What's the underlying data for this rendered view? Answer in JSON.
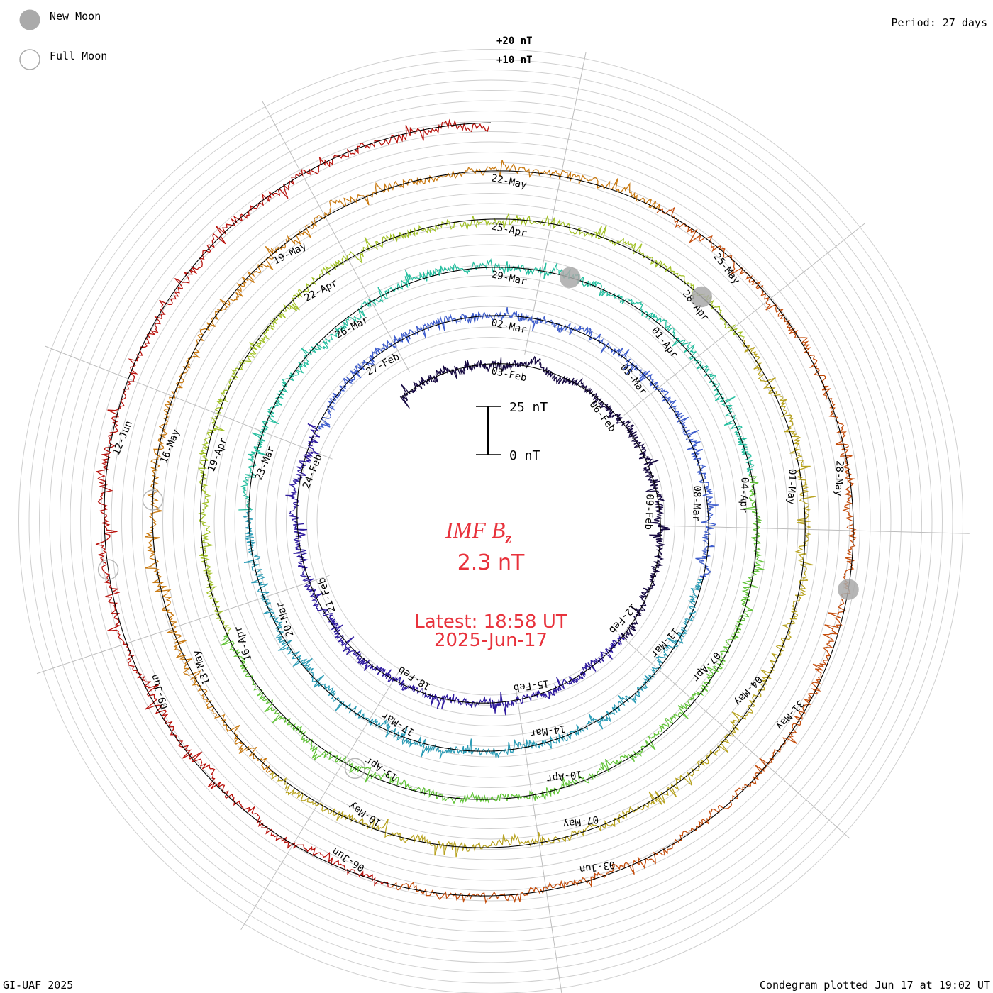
{
  "legend": {
    "new_moon_label": "New Moon",
    "full_moon_label": "Full Moon"
  },
  "header": {
    "period_label": "Period: 27 days"
  },
  "footer": {
    "left_label": "GI-UAF 2025",
    "right_label": "Condegram plotted Jun 17 at 19:02 UT"
  },
  "scale_bar": {
    "top_label": "25 nT",
    "bottom_label": "0 nT"
  },
  "center": {
    "title": "IMF B",
    "title_sub": "z",
    "value": "2.3 nT",
    "latest_label": "Latest: 18:58 UT",
    "date_label": "2025-Jun-17"
  },
  "chart_data": {
    "type": "condegram",
    "title": "IMF Bz",
    "units": "nT",
    "period_days": 27,
    "range_labels": [
      "+20 nT",
      "+10 nT"
    ],
    "colors": {
      "new_moon": "#aaaaaa",
      "full_moon": "#ffffff",
      "cycles": [
        "#170a42",
        "#2e1a9e",
        "#3d5ccc",
        "#2a9bb5",
        "#27bfa0",
        "#63c43a",
        "#a3c22a",
        "#b8a321",
        "#c97a12",
        "#c44d0c",
        "#b8120c"
      ]
    },
    "cycles": [
      {
        "index": 1,
        "start": "03-Feb",
        "labels": [
          "03-Feb",
          "06-Feb",
          "09-Feb",
          "12-Feb",
          "15-Feb",
          "18-Feb",
          "21-Feb",
          "24-Feb",
          "27-Feb"
        ]
      },
      {
        "index": 2,
        "start": "02-Mar",
        "labels": [
          "02-Mar",
          "05-Mar",
          "08-Mar",
          "11-Mar",
          "14-Mar",
          "17-Mar",
          "20-Mar",
          "23-Mar",
          "26-Mar"
        ]
      },
      {
        "index": 3,
        "start": "29-Mar",
        "labels": [
          "29-Mar",
          "01-Apr",
          "04-Apr",
          "07-Apr",
          "10-Apr",
          "13-Apr",
          "16-Apr",
          "19-Apr",
          "22-Apr"
        ]
      },
      {
        "index": 4,
        "start": "25-Apr",
        "labels": [
          "25-Apr",
          "28-Apr",
          "01-May",
          "04-May",
          "07-May",
          "10-May",
          "13-May",
          "16-May",
          "19-May"
        ]
      },
      {
        "index": 5,
        "start": "22-May",
        "labels": [
          "22-May",
          "25-May",
          "28-May",
          "31-May",
          "03-Jun",
          "06-Jun",
          "09-Jun",
          "12-Jun"
        ]
      }
    ]
  }
}
